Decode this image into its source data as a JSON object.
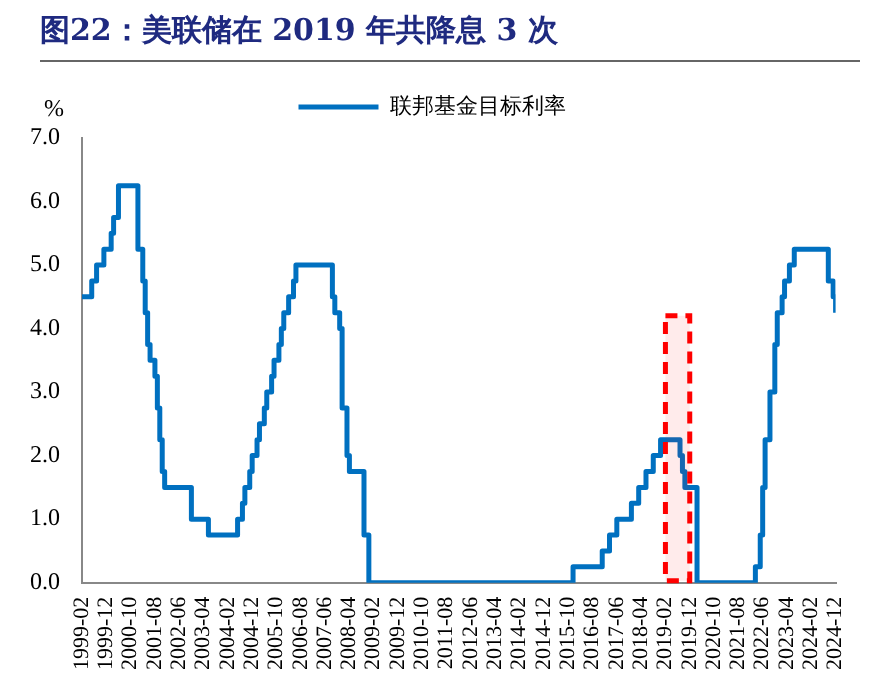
{
  "chart_data": {
    "type": "step",
    "title": "图22：美联储在 2019 年共降息 3 次",
    "ylabel": "%",
    "x": [
      "1999-02",
      "1999-06",
      "1999-08",
      "1999-11",
      "2000-02",
      "2000-03",
      "2000-05",
      "2001-01",
      "2001-03",
      "2001-04",
      "2001-05",
      "2001-06",
      "2001-08",
      "2001-09",
      "2001-10",
      "2001-11",
      "2001-12",
      "2002-11",
      "2003-06",
      "2004-06",
      "2004-08",
      "2004-09",
      "2004-11",
      "2004-12",
      "2005-02",
      "2005-03",
      "2005-05",
      "2005-06",
      "2005-08",
      "2005-09",
      "2005-11",
      "2005-12",
      "2006-01",
      "2006-03",
      "2006-05",
      "2006-06",
      "2007-09",
      "2007-10",
      "2007-12",
      "2008-01",
      "2008-03",
      "2008-04",
      "2008-10",
      "2008-12",
      "2015-12",
      "2016-12",
      "2017-03",
      "2017-06",
      "2017-12",
      "2018-03",
      "2018-06",
      "2018-09",
      "2018-12",
      "2019-08",
      "2019-09",
      "2019-10",
      "2020-03",
      "2022-03",
      "2022-05",
      "2022-06",
      "2022-07",
      "2022-09",
      "2022-11",
      "2022-12",
      "2023-02",
      "2023-03",
      "2023-05",
      "2023-07",
      "2024-09",
      "2024-11",
      "2024-12"
    ],
    "series": [
      {
        "name": "联邦基金目标利率",
        "color": "#0070c0",
        "values": [
          4.5,
          4.75,
          5.0,
          5.25,
          5.5,
          5.75,
          6.25,
          5.25,
          4.75,
          4.25,
          3.75,
          3.5,
          3.25,
          2.75,
          2.25,
          1.75,
          1.5,
          1.0,
          0.75,
          1.0,
          1.25,
          1.5,
          1.75,
          2.0,
          2.25,
          2.5,
          2.75,
          3.0,
          3.25,
          3.5,
          3.75,
          4.0,
          4.25,
          4.5,
          4.75,
          5.0,
          4.5,
          4.25,
          4.0,
          2.75,
          2.0,
          1.75,
          0.75,
          0,
          0.25,
          0.5,
          0.75,
          1.0,
          1.25,
          1.5,
          1.75,
          2.0,
          2.25,
          2.0,
          1.75,
          1.5,
          0,
          0.25,
          0.75,
          1.5,
          2.25,
          3.0,
          3.75,
          4.25,
          4.5,
          4.75,
          5.0,
          5.25,
          4.75,
          4.5,
          4.25
        ]
      }
    ],
    "xlim": [
      "1999-02",
      "2024-12"
    ],
    "xticks": [
      "1999-02",
      "1999-12",
      "2000-10",
      "2001-08",
      "2002-06",
      "2003-04",
      "2004-02",
      "2004-12",
      "2005-10",
      "2006-08",
      "2007-06",
      "2008-04",
      "2009-02",
      "2009-12",
      "2010-10",
      "2011-08",
      "2012-06",
      "2013-04",
      "2014-02",
      "2014-12",
      "2015-10",
      "2016-08",
      "2017-06",
      "2018-04",
      "2019-02",
      "2019-12",
      "2020-10",
      "2021-08",
      "2022-06",
      "2023-04",
      "2024-02",
      "2024-12"
    ],
    "ylim": [
      0,
      7
    ],
    "yticks": [
      {
        "value": 0,
        "label": "0.0"
      },
      {
        "value": 1,
        "label": "1.0"
      },
      {
        "value": 2,
        "label": "2.0"
      },
      {
        "value": 3,
        "label": "3.0"
      },
      {
        "value": 4,
        "label": "4.0"
      },
      {
        "value": 5,
        "label": "5.0"
      },
      {
        "value": 6,
        "label": "6.0"
      },
      {
        "value": 7,
        "label": "7.0"
      }
    ],
    "bands": [
      {
        "axis": "x",
        "from": "2019-02",
        "to": "2019-12",
        "color": "#ff0000"
      }
    ],
    "grid": false,
    "legend": "top"
  }
}
